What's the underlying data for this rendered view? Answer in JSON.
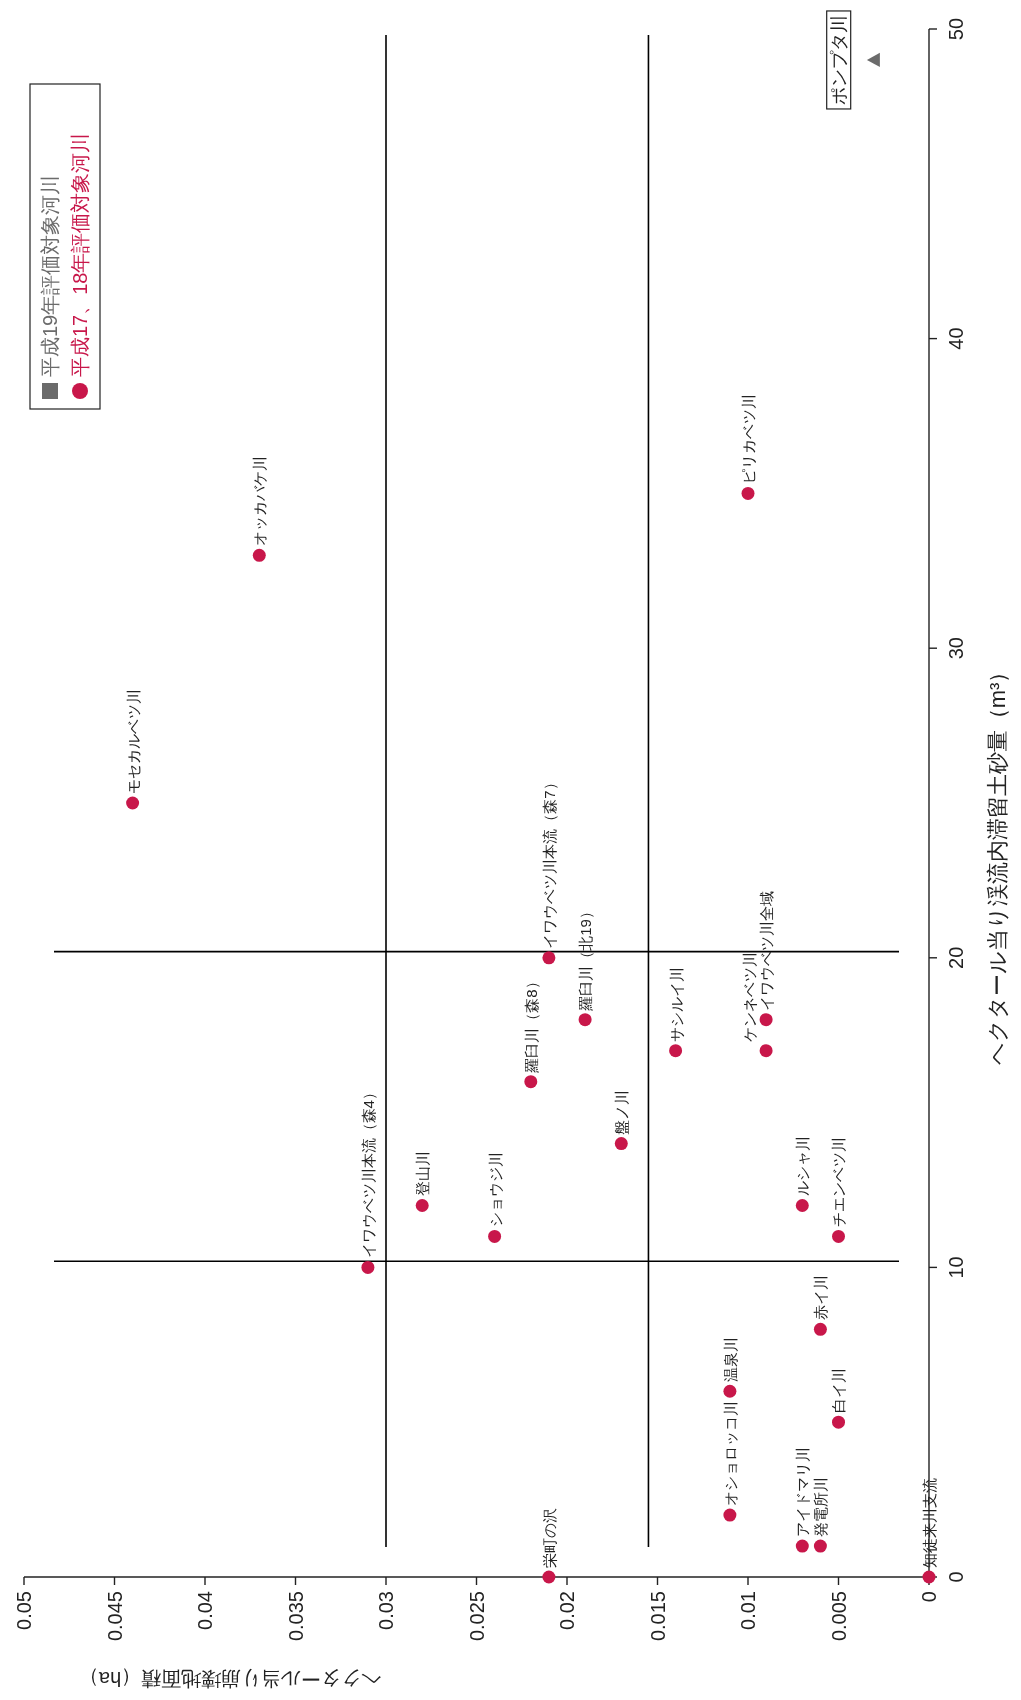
{
  "chart_data": {
    "type": "scatter",
    "xlabel": "ヘクタール当り崩壊地面積（ha）",
    "ylabel": "ヘクタール当り渓流内滞留土砂量（m³）",
    "xlim": [
      0.05,
      0
    ],
    "xticks": [
      0.05,
      0.045,
      0.04,
      0.035,
      0.03,
      0.025,
      0.02,
      0.015,
      0.01,
      0.005,
      0
    ],
    "ylim": [
      0,
      50
    ],
    "yticks": [
      0,
      10,
      20,
      30,
      40,
      50
    ],
    "series": [
      {
        "name": "平成19年評価対象河川",
        "color": "#6b6b6b",
        "marker": "triangle",
        "x": [
          0.003
        ],
        "values": [
          49
        ]
      },
      {
        "name": "平成17、18年評価対象河川",
        "color": "#c8174a",
        "marker": "circle",
        "x": [
          0.021,
          0,
          0.011,
          0.007,
          0.006,
          0.011,
          0.005,
          0.006,
          0.031,
          0.024,
          0.005,
          0.028,
          0.007,
          0.017,
          0.022,
          0.014,
          0.009,
          0.019,
          0.009,
          0.021,
          0.044,
          0.037,
          0.01
        ],
        "values": [
          0,
          0,
          2,
          1,
          1,
          6,
          5,
          8,
          10,
          11,
          11,
          12,
          12,
          14,
          16,
          17,
          17,
          18,
          18,
          20,
          25,
          33,
          35
        ]
      }
    ],
    "ref_lines": [
      {
        "axis": "x",
        "value": 0.03,
        "color": "#000000"
      },
      {
        "axis": "x",
        "value": 0.0155,
        "color": "#000000"
      },
      {
        "axis": "y",
        "value": 10.2,
        "color": "#000000"
      },
      {
        "axis": "y",
        "value": 20.2,
        "color": "#000000"
      }
    ],
    "annotations": [
      {
        "text": "ポンプタ川",
        "x": 0.003,
        "y": 49
      },
      {
        "text": "栄町の沢",
        "x": 0.021,
        "y": 0
      },
      {
        "text": "知徒来川支流",
        "x": 0,
        "y": 0
      },
      {
        "text": "オショロッコ川",
        "x": 0.011,
        "y": 2
      },
      {
        "text": "アイドマリ川",
        "x": 0.007,
        "y": 1
      },
      {
        "text": "発電所川",
        "x": 0.006,
        "y": 1
      },
      {
        "text": "温泉川",
        "x": 0.011,
        "y": 6
      },
      {
        "text": "白イ川",
        "x": 0.005,
        "y": 5
      },
      {
        "text": "赤イ川",
        "x": 0.006,
        "y": 8
      },
      {
        "text": "イワウベツ川本流（森4）",
        "x": 0.031,
        "y": 10
      },
      {
        "text": "ショウジ川",
        "x": 0.024,
        "y": 11
      },
      {
        "text": "チエンベツ川",
        "x": 0.005,
        "y": 11
      },
      {
        "text": "登山川",
        "x": 0.028,
        "y": 12
      },
      {
        "text": "ルシャ川",
        "x": 0.007,
        "y": 12
      },
      {
        "text": "盤ノ川",
        "x": 0.017,
        "y": 14
      },
      {
        "text": "羅臼川（森8）",
        "x": 0.022,
        "y": 16
      },
      {
        "text": "サシルイ川",
        "x": 0.014,
        "y": 17
      },
      {
        "text": "ケンネベツ川",
        "x": 0.009,
        "y": 17
      },
      {
        "text": "羅臼川（北19）",
        "x": 0.019,
        "y": 18
      },
      {
        "text": "イワウベツ川全域",
        "x": 0.009,
        "y": 18
      },
      {
        "text": "イワウベツ川本流（森7）",
        "x": 0.021,
        "y": 20
      },
      {
        "text": "モセカルベツ川",
        "x": 0.044,
        "y": 25
      },
      {
        "text": "オッカバケ川",
        "x": 0.037,
        "y": 33
      },
      {
        "text": "ピリカベツ川",
        "x": 0.01,
        "y": 35
      }
    ],
    "legend": "top left",
    "grid": false
  }
}
